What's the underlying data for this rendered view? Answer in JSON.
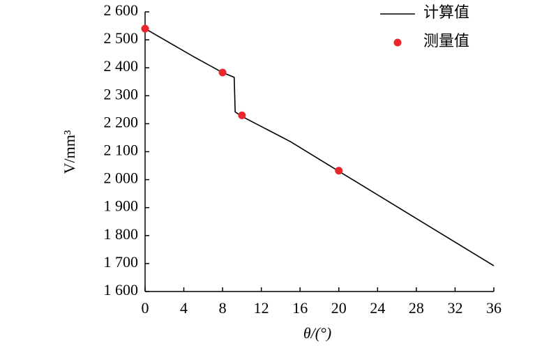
{
  "chart_data": {
    "type": "line",
    "x_label": "θ/(°)",
    "y_label": "V/mm³",
    "xlim": [
      0,
      36
    ],
    "xticks": [
      0,
      4,
      8,
      12,
      16,
      20,
      24,
      28,
      32,
      36
    ],
    "ylim": [
      1600,
      2600
    ],
    "yticks": [
      {
        "value": 1600,
        "label": "1 600"
      },
      {
        "value": 1700,
        "label": "1 700"
      },
      {
        "value": 1800,
        "label": "1 800"
      },
      {
        "value": 1900,
        "label": "1 900"
      },
      {
        "value": 2000,
        "label": "2 000"
      },
      {
        "value": 2100,
        "label": "2 100"
      },
      {
        "value": 2200,
        "label": "2 200"
      },
      {
        "value": 2300,
        "label": "2 300"
      },
      {
        "value": 2400,
        "label": "2 400"
      },
      {
        "value": 2500,
        "label": "2 500"
      },
      {
        "value": 2600,
        "label": "2 600"
      }
    ],
    "legend": "upper right",
    "series": [
      {
        "name": "计算值",
        "type": "line",
        "color": "#000000",
        "x": [
          0,
          5,
          8,
          9.2,
          9.3,
          10,
          15,
          20,
          36
        ],
        "values": [
          2540,
          2440,
          2383,
          2366,
          2242,
          2226,
          2136,
          2030,
          1692
        ]
      },
      {
        "name": "测量值",
        "type": "scatter",
        "color": "#e8262b",
        "x": [
          0,
          8,
          10,
          20
        ],
        "values": [
          2540,
          2383,
          2230,
          2032
        ]
      }
    ]
  }
}
